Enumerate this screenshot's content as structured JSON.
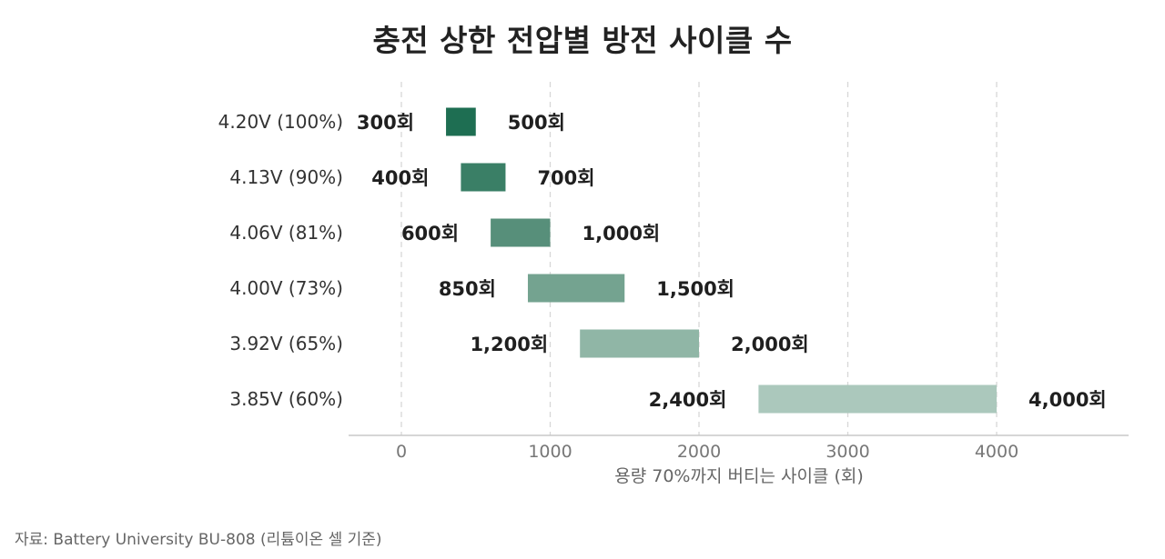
{
  "title": "충전 상한 전압별 방전 사이클 수",
  "source": "자료: Battery University BU-808 (리튬이온 셀 기준)",
  "chart_data": {
    "type": "bar",
    "orientation": "horizontal-range",
    "title": "충전 상한 전압별 방전 사이클 수",
    "xlabel": "용량 70%까지 버티는 사이클 (회)",
    "ylabel": "",
    "xlim": [
      -350,
      4800
    ],
    "xticks": [
      0,
      1000,
      2000,
      3000,
      4000
    ],
    "xtick_labels": [
      "0",
      "1000",
      "2000",
      "3000",
      "4000"
    ],
    "grid": "vertical dashed",
    "categories": [
      "4.20V (100%)",
      "4.13V (90%)",
      "4.06V (81%)",
      "4.00V (73%)",
      "3.92V (65%)",
      "3.85V (60%)"
    ],
    "low": [
      300,
      400,
      600,
      850,
      1200,
      2400
    ],
    "high": [
      500,
      700,
      1000,
      1500,
      2000,
      4000
    ],
    "low_labels": [
      "300회",
      "400회",
      "600회",
      "850회",
      "1,200회",
      "2,400회"
    ],
    "high_labels": [
      "500회",
      "700회",
      "1,000회",
      "1,500회",
      "2,000회",
      "4,000회"
    ],
    "colors": [
      "#1e6e52",
      "#3a7f66",
      "#578f7a",
      "#74a390",
      "#90b6a6",
      "#abc8bc"
    ]
  }
}
